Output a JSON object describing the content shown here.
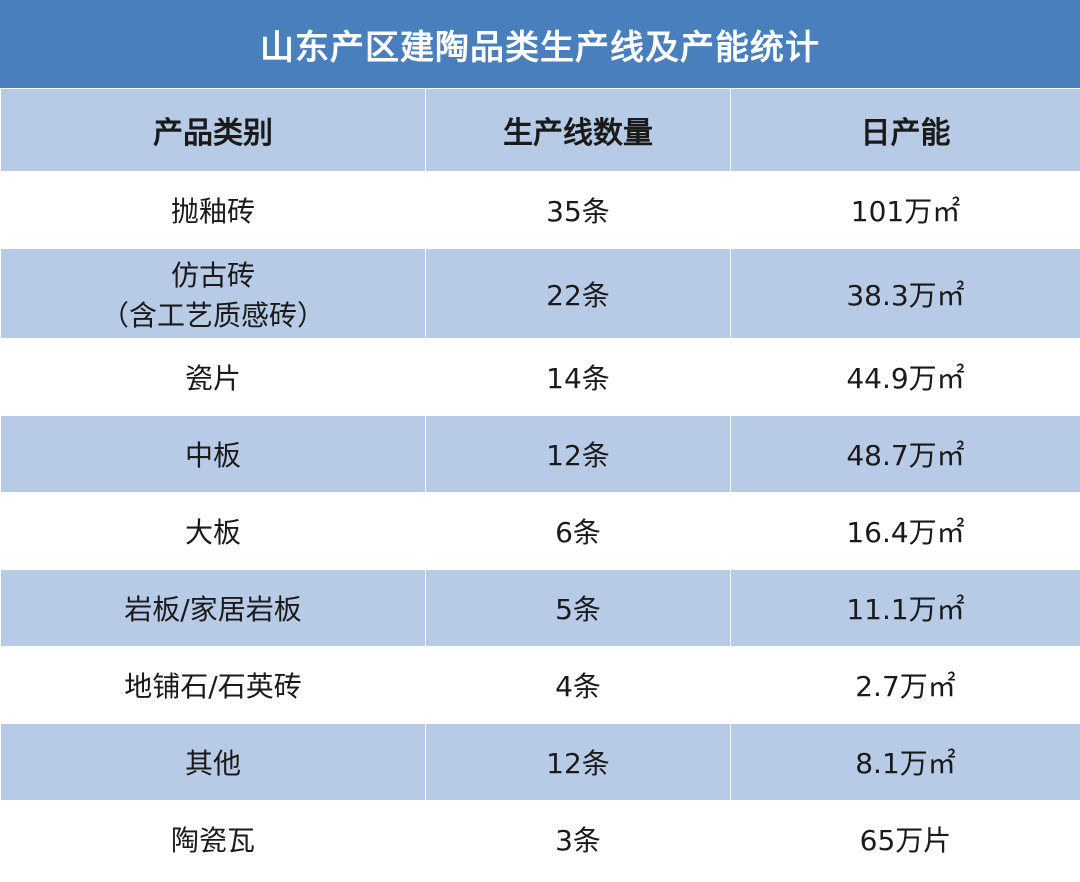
{
  "title": "山东产区建陶品类生产线及产能统计",
  "headers": {
    "category": "产品类别",
    "lines": "生产线数量",
    "daily_capacity": "日产能"
  },
  "rows": [
    {
      "category": "抛釉砖",
      "category_sub": "",
      "lines": "35条",
      "capacity": "101万㎡"
    },
    {
      "category": "仿古砖",
      "category_sub": "（含工艺质感砖）",
      "lines": "22条",
      "capacity": "38.3万㎡"
    },
    {
      "category": "瓷片",
      "category_sub": "",
      "lines": "14条",
      "capacity": "44.9万㎡"
    },
    {
      "category": "中板",
      "category_sub": "",
      "lines": "12条",
      "capacity": "48.7万㎡"
    },
    {
      "category": "大板",
      "category_sub": "",
      "lines": "6条",
      "capacity": "16.4万㎡"
    },
    {
      "category": "岩板/家居岩板",
      "category_sub": "",
      "lines": "5条",
      "capacity": "11.1万㎡"
    },
    {
      "category": "地铺石/石英砖",
      "category_sub": "",
      "lines": "4条",
      "capacity": "2.7万㎡"
    },
    {
      "category": "其他",
      "category_sub": "",
      "lines": "12条",
      "capacity": "8.1万㎡"
    },
    {
      "category": "陶瓷瓦",
      "category_sub": "",
      "lines": "3条",
      "capacity": "65万片"
    }
  ],
  "colors": {
    "title_bg": "#4a7fbe",
    "row_blue": "#b7cbe6",
    "row_white": "#ffffff"
  }
}
